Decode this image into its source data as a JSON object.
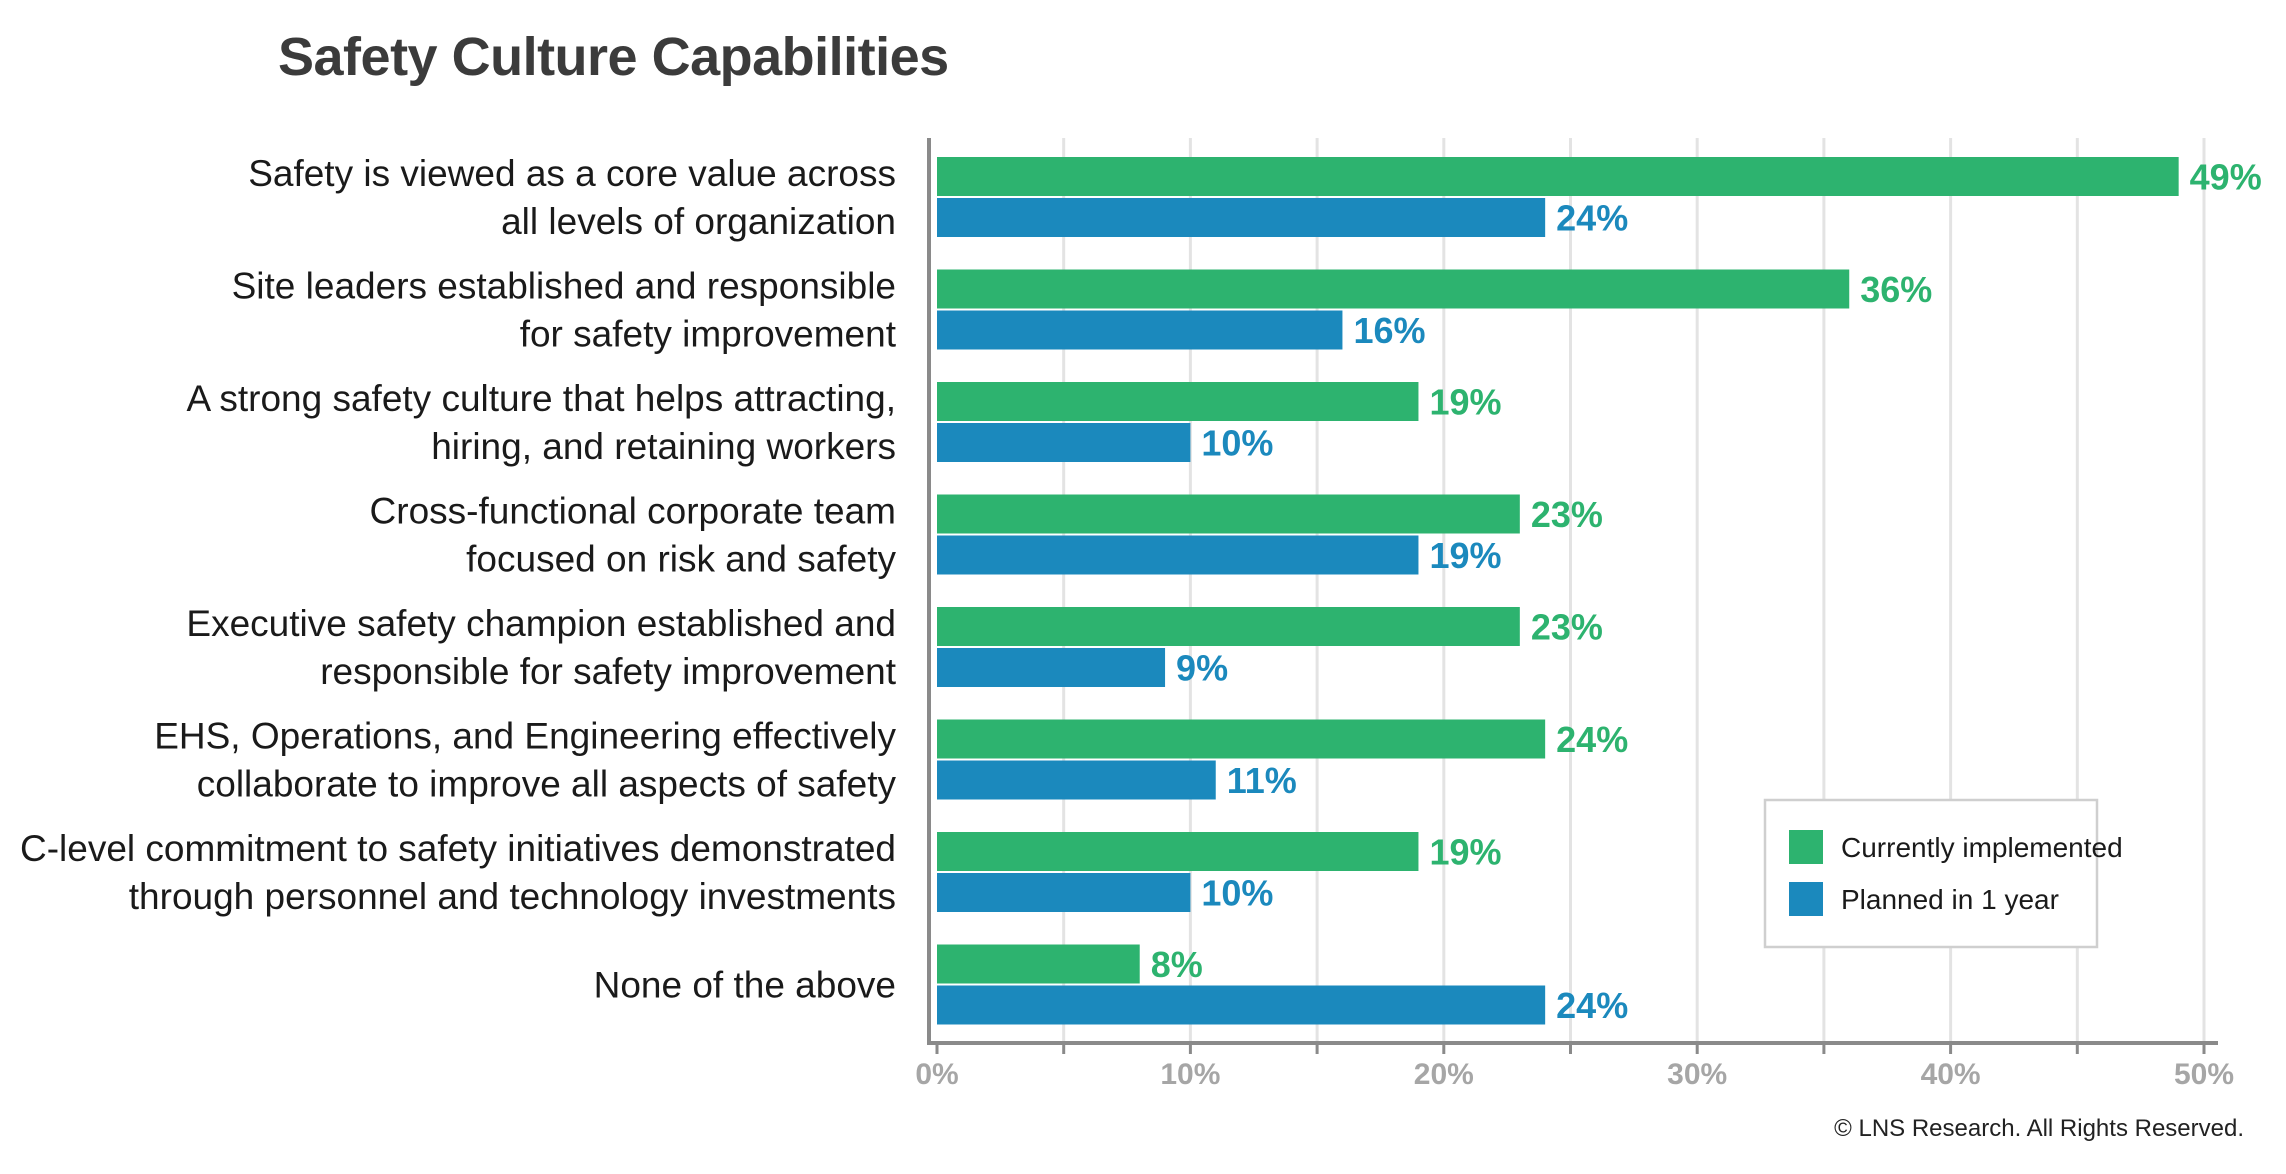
{
  "chart_data": {
    "type": "bar",
    "orientation": "horizontal",
    "title": "Safety Culture Capabilities",
    "categories": [
      [
        "Safety is viewed as a core value across",
        "all levels of organization"
      ],
      [
        "Site leaders established and responsible",
        "for safety improvement"
      ],
      [
        "A strong safety culture that helps attracting,",
        "hiring, and retaining workers"
      ],
      [
        "Cross-functional corporate team",
        "focused on risk and safety"
      ],
      [
        "Executive safety champion established and",
        "responsible for safety improvement"
      ],
      [
        "EHS, Operations, and Engineering effectively",
        "collaborate to improve all aspects of safety"
      ],
      [
        "C-level commitment to safety initiatives demonstrated",
        "through personnel and technology investments"
      ],
      [
        "None of the above"
      ]
    ],
    "series": [
      {
        "name": "Currently implemented",
        "color": "#2db36f",
        "values": [
          49,
          36,
          19,
          23,
          23,
          24,
          19,
          8
        ],
        "labels": [
          "49%",
          "36%",
          "19%",
          "23%",
          "23%",
          "24%",
          "19%",
          "8%"
        ]
      },
      {
        "name": "Planned in 1 year",
        "color": "#1b89bd",
        "values": [
          24,
          16,
          10,
          19,
          9,
          11,
          10,
          24
        ],
        "labels": [
          "24%",
          "16%",
          "10%",
          "19%",
          "9%",
          "11%",
          "10%",
          "24%"
        ]
      }
    ],
    "x_ticks": [
      "0%",
      "10%",
      "20%",
      "30%",
      "40%",
      "50%"
    ],
    "xlim": [
      0,
      50
    ],
    "grid": true,
    "legend_position": "bottom-right",
    "colors": {
      "axis": "#8a8a8a",
      "grid": "#e3e3e3",
      "tick_label": "#a6a6a6",
      "category_label": "#1a1a1a",
      "legend_border": "#cfcfcf"
    }
  },
  "copyright": "© LNS Research. All Rights Reserved."
}
